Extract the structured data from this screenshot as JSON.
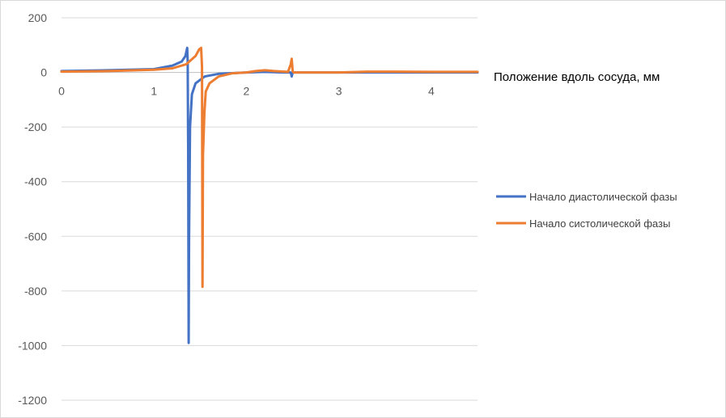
{
  "chart_data": {
    "type": "line",
    "xlabel": "Положение вдоль сосуда, мм",
    "ylabel": "",
    "title": "",
    "xlim": [
      0,
      4.5
    ],
    "ylim": [
      -1200,
      200
    ],
    "x_ticks": [
      "0",
      "1",
      "2",
      "3",
      "4"
    ],
    "y_ticks": [
      "200",
      "0",
      "-200",
      "-400",
      "-600",
      "-800",
      "-1000",
      "-1200"
    ],
    "grid": "horizontal",
    "legend_position": "right",
    "series": [
      {
        "name": "Начало диастолической фазы",
        "color": "#4472C4",
        "x": [
          0,
          0.5,
          1.0,
          1.2,
          1.3,
          1.34,
          1.36,
          1.365,
          1.37,
          1.375,
          1.38,
          1.39,
          1.41,
          1.45,
          1.55,
          1.7,
          2.0,
          2.2,
          2.4,
          2.48,
          2.49,
          2.5,
          2.52,
          2.6,
          3.0,
          3.5,
          4.0,
          4.5
        ],
        "y": [
          5,
          8,
          12,
          25,
          40,
          60,
          90,
          40,
          -300,
          -990,
          -600,
          -200,
          -80,
          -40,
          -15,
          -5,
          0,
          2,
          0,
          0,
          -15,
          0,
          0,
          0,
          0,
          0,
          0,
          0
        ]
      },
      {
        "name": "Начало систолической фазы",
        "color": "#ED7D31",
        "x": [
          0,
          0.5,
          1.0,
          1.2,
          1.35,
          1.45,
          1.49,
          1.51,
          1.52,
          1.525,
          1.53,
          1.535,
          1.545,
          1.56,
          1.6,
          1.7,
          1.85,
          2.0,
          2.1,
          2.2,
          2.3,
          2.45,
          2.48,
          2.49,
          2.5,
          2.51,
          2.55,
          2.7,
          3.0,
          3.3,
          3.6,
          4.0,
          4.5
        ],
        "y": [
          3,
          5,
          10,
          15,
          30,
          60,
          85,
          90,
          20,
          -785,
          -300,
          -260,
          -150,
          -70,
          -40,
          -15,
          -3,
          0,
          5,
          8,
          5,
          2,
          30,
          50,
          5,
          0,
          0,
          0,
          0,
          3,
          3,
          2,
          2
        ]
      }
    ]
  }
}
